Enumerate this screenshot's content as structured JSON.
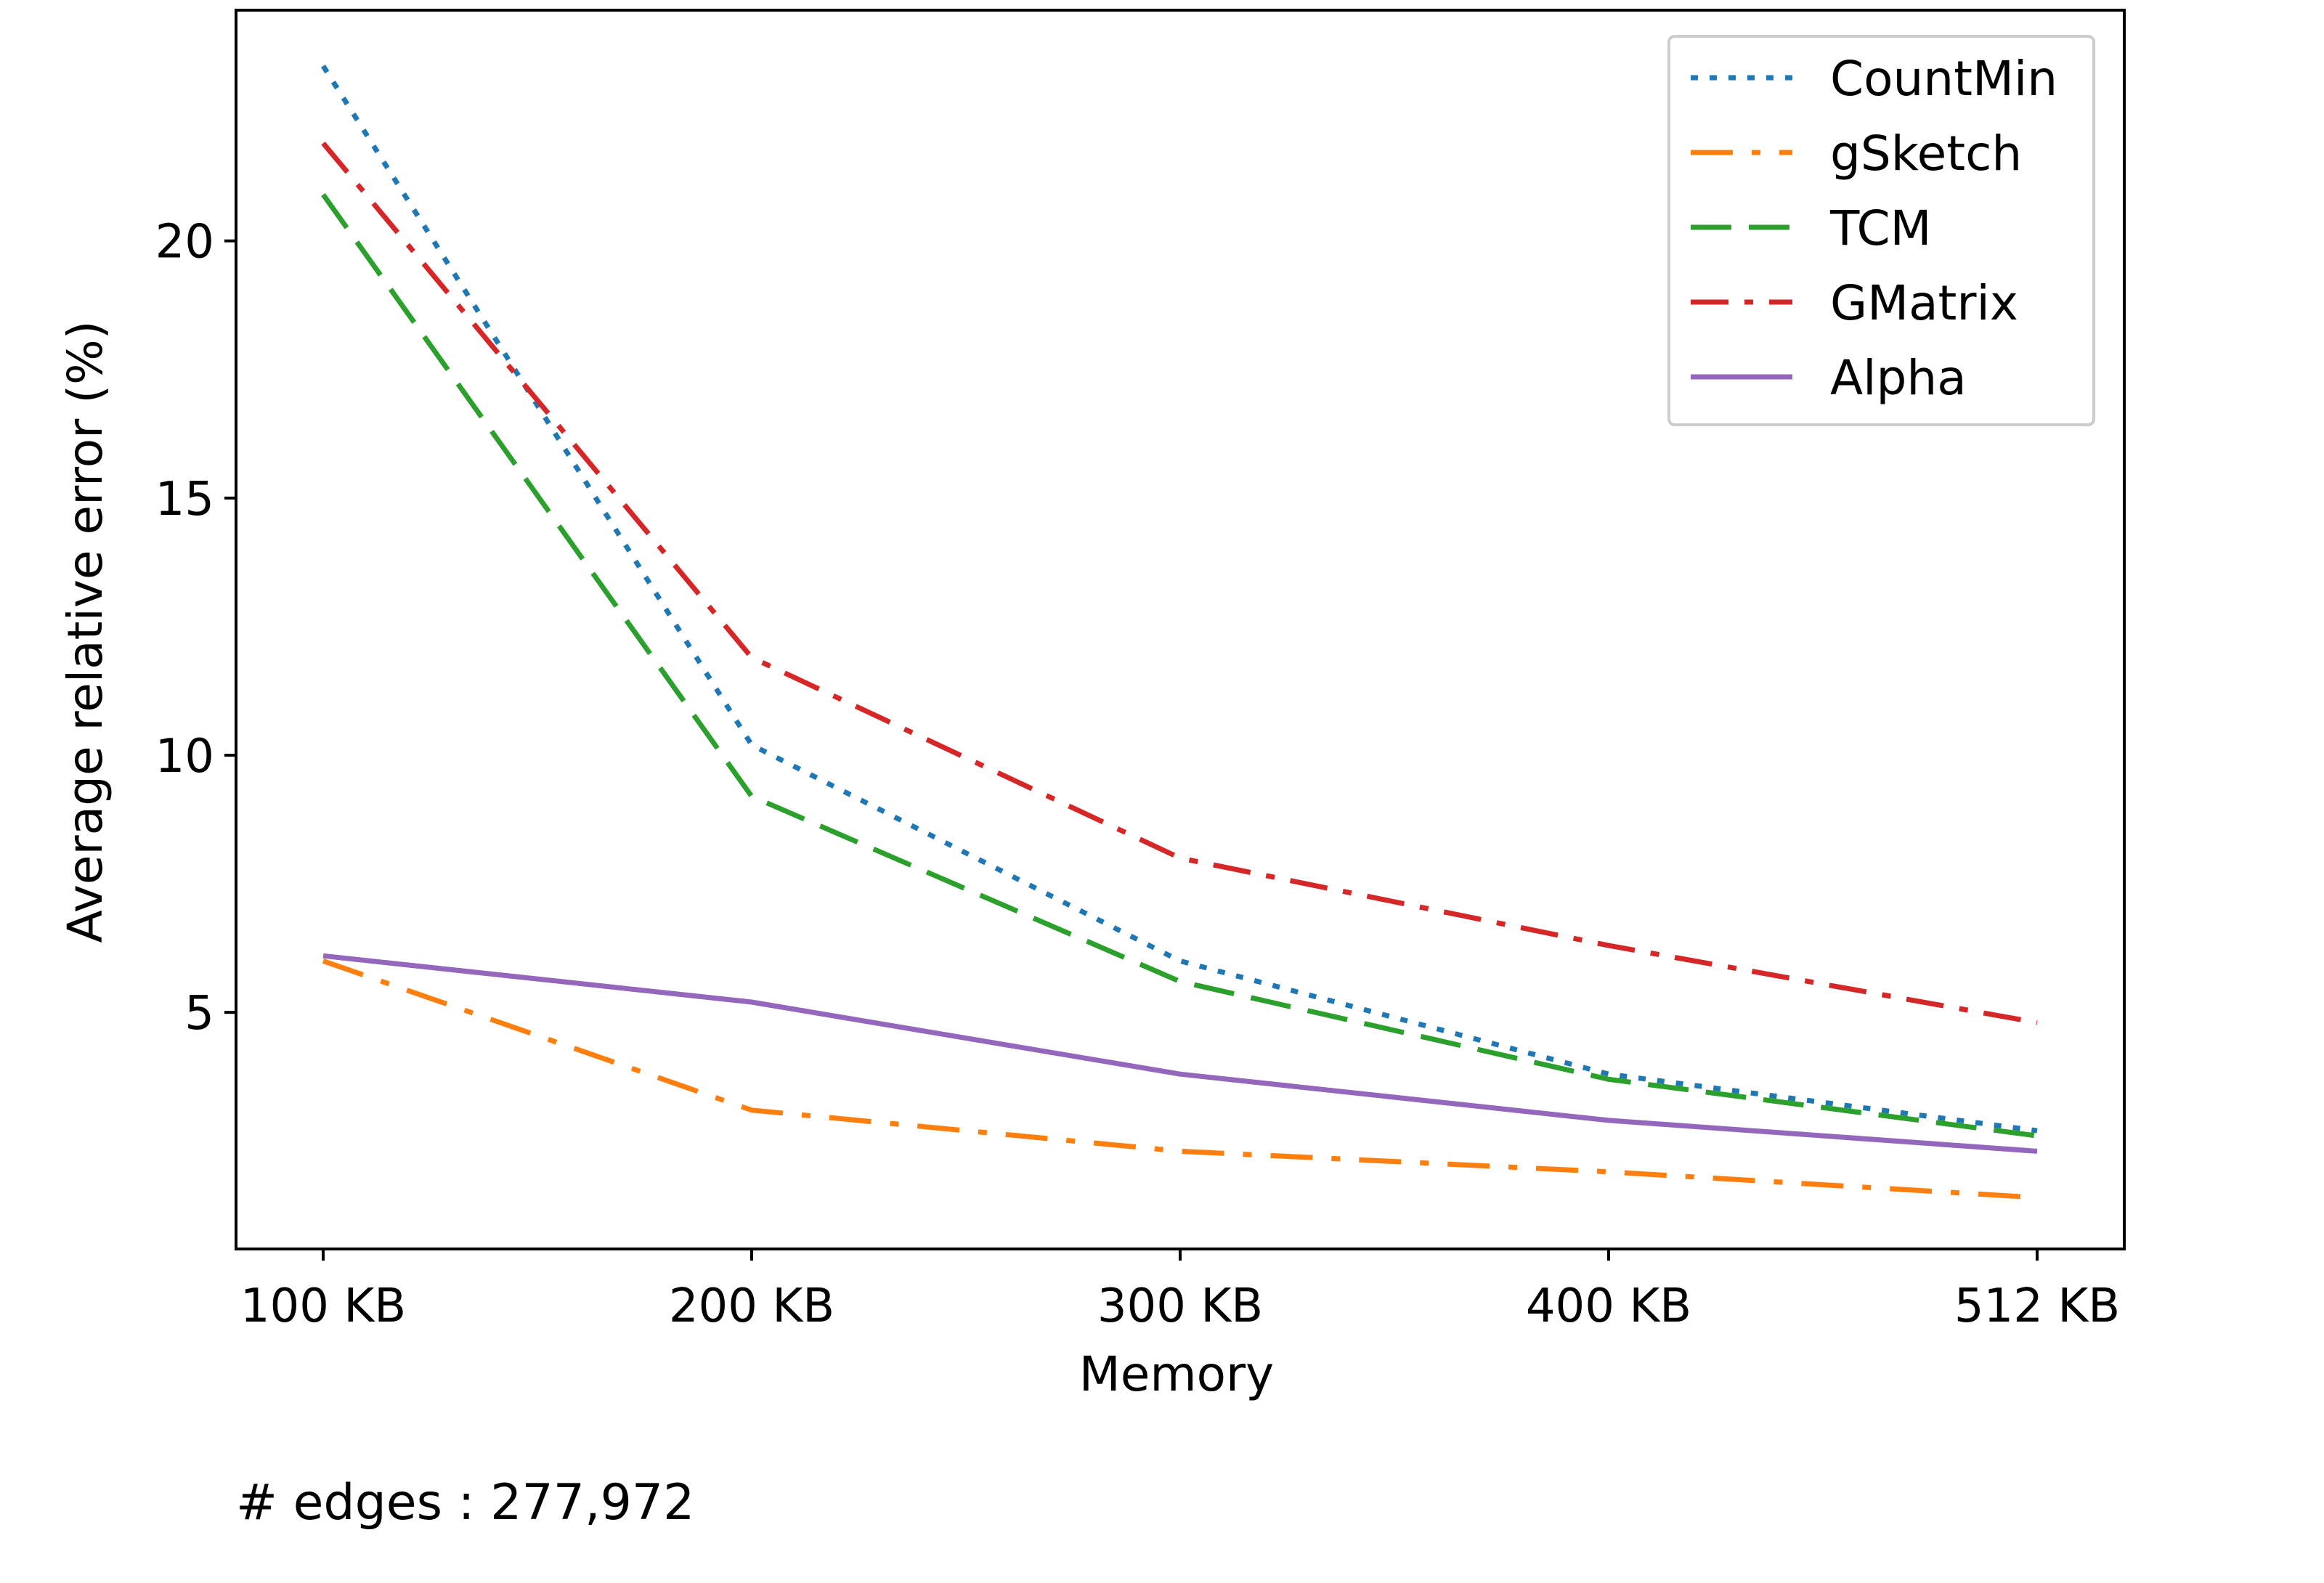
{
  "chart_data": {
    "type": "line",
    "categories": [
      "100 KB",
      "200 KB",
      "300 KB",
      "400 KB",
      "512 KB"
    ],
    "x": [
      100,
      200,
      300,
      400,
      512
    ],
    "series": [
      {
        "name": "CountMin",
        "values": [
          23.4,
          10.2,
          6.0,
          3.8,
          2.7
        ],
        "color": "#1f77b4",
        "style": "dotted"
      },
      {
        "name": "gSketch",
        "values": [
          6.0,
          3.1,
          2.3,
          1.9,
          1.4
        ],
        "color": "#ff7f0e",
        "style": "dash-dot-long"
      },
      {
        "name": "TCM",
        "values": [
          20.9,
          9.2,
          5.6,
          3.7,
          2.6
        ],
        "color": "#2ca02c",
        "style": "dashed"
      },
      {
        "name": "GMatrix",
        "values": [
          21.9,
          11.9,
          8.0,
          6.3,
          4.8
        ],
        "color": "#d62728",
        "style": "dash-dot"
      },
      {
        "name": "Alpha",
        "values": [
          6.1,
          5.2,
          3.8,
          2.9,
          2.3
        ],
        "color": "#9467bd",
        "style": "solid"
      }
    ],
    "xlabel": "Memory",
    "ylabel": "Average relative error (%)",
    "yticks": [
      5,
      10,
      15,
      20
    ],
    "ylim": [
      0.4,
      24.5
    ],
    "grid": false,
    "legend_position": "top-right"
  },
  "annotation": "# edges : 277,972"
}
